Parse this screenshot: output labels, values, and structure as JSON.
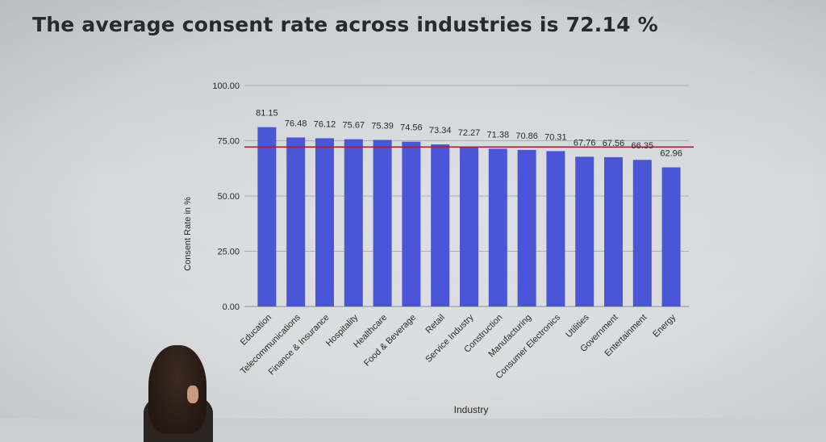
{
  "slide": {
    "headline": "The average consent rate across industries is 72.14 %"
  },
  "colors": {
    "bar": "#4a56d6",
    "average_line": "#a52232",
    "grid": "#9aa0a6",
    "text": "#2a2a2a"
  },
  "chart_data": {
    "type": "bar",
    "title": "",
    "xlabel": "Industry",
    "ylabel": "Consent Rate in %",
    "ylim": [
      0,
      100
    ],
    "yticks": [
      "0.00",
      "25.00",
      "50.00",
      "75.00",
      "100.00"
    ],
    "grid": true,
    "categories": [
      "Education",
      "Telecommunications",
      "Finance & Insurance",
      "Hospitality",
      "Healthcare",
      "Food & Beverage",
      "Retail",
      "Service Industry",
      "Construction",
      "Manufacturing",
      "Consumer Electronics",
      "Utilities",
      "Government",
      "Entertainment",
      "Energy"
    ],
    "values": [
      81.15,
      76.48,
      76.12,
      75.67,
      75.39,
      74.56,
      73.34,
      72.27,
      71.38,
      70.86,
      70.31,
      67.76,
      67.56,
      66.35,
      62.96
    ],
    "value_labels": [
      "81.15",
      "76.48",
      "76.12",
      "75.67",
      "75.39",
      "74.56",
      "73.34",
      "72.27",
      "71.38",
      "70.86",
      "70.31",
      "67.76",
      "67.56",
      "66.35",
      "62.96"
    ],
    "reference_line": {
      "value": 72.14
    }
  }
}
